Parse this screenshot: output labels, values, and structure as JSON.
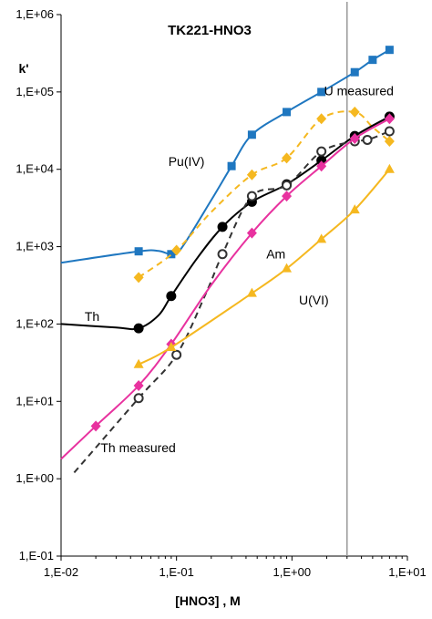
{
  "chart_data": {
    "type": "line",
    "title": "TK221-HNO3",
    "xlabel": "[HNO3] , M",
    "ylabel": "k'",
    "x_scale": "log",
    "y_scale": "log",
    "xlim": [
      0.01,
      10
    ],
    "ylim": [
      0.1,
      1000000
    ],
    "x_ticks": [
      "1,E-02",
      "1,E-01",
      "1,E+00",
      "1,E+01"
    ],
    "y_ticks": [
      "1,E-01",
      "1,E+00",
      "1,E+01",
      "1,E+02",
      "1,E+03",
      "1,E+04",
      "1,E+05",
      "1,E+06"
    ],
    "grid": false,
    "vertical_line_x": 3,
    "series": [
      {
        "name": "U measured",
        "color": "#1f77c0",
        "marker": "square",
        "dashed": false,
        "points": [
          [
            0.047,
            870
          ],
          [
            0.09,
            800
          ],
          [
            0.3,
            11000
          ],
          [
            0.45,
            28000
          ],
          [
            0.9,
            55000
          ],
          [
            1.8,
            100000
          ],
          [
            3.5,
            180000
          ],
          [
            5,
            260000
          ],
          [
            7,
            350000
          ]
        ],
        "curve": [
          [
            0.01,
            620
          ],
          [
            0.047,
            870
          ],
          [
            0.07,
            880
          ],
          [
            0.09,
            800
          ],
          [
            0.11,
            950
          ],
          [
            0.2,
            4000
          ],
          [
            0.3,
            11000
          ],
          [
            0.45,
            28000
          ],
          [
            0.9,
            55000
          ],
          [
            1.8,
            100000
          ],
          [
            3.5,
            180000
          ],
          [
            5,
            260000
          ],
          [
            7,
            350000
          ]
        ]
      },
      {
        "name": "Pu(IV)",
        "color": "#f5b820",
        "marker": "diamond",
        "dashed": true,
        "points": [
          [
            0.047,
            400
          ],
          [
            0.1,
            900
          ],
          [
            0.45,
            8500
          ],
          [
            0.9,
            14000
          ],
          [
            1.8,
            45000
          ],
          [
            3.5,
            55000
          ],
          [
            7,
            23000
          ]
        ],
        "curve": [
          [
            0.047,
            400
          ],
          [
            0.1,
            900
          ],
          [
            0.2,
            2800
          ],
          [
            0.45,
            8500
          ],
          [
            0.9,
            14000
          ],
          [
            1.8,
            45000
          ],
          [
            3.5,
            55000
          ],
          [
            5,
            35000
          ],
          [
            7,
            23000
          ]
        ]
      },
      {
        "name": "Th",
        "color": "#000000",
        "marker": "circle",
        "dashed": false,
        "points": [
          [
            0.047,
            88
          ],
          [
            0.09,
            230
          ],
          [
            0.25,
            1800
          ],
          [
            0.45,
            3800
          ],
          [
            0.9,
            6400
          ],
          [
            1.8,
            13000
          ],
          [
            3.5,
            27000
          ],
          [
            7,
            48000
          ]
        ],
        "curve": [
          [
            0.01,
            100
          ],
          [
            0.03,
            90
          ],
          [
            0.047,
            88
          ],
          [
            0.07,
            130
          ],
          [
            0.09,
            230
          ],
          [
            0.15,
            700
          ],
          [
            0.25,
            1800
          ],
          [
            0.45,
            3800
          ],
          [
            0.9,
            6400
          ],
          [
            1.8,
            13000
          ],
          [
            3.5,
            27000
          ],
          [
            7,
            48000
          ]
        ]
      },
      {
        "name": "Th measured",
        "color": "#333333",
        "marker": "open-circle",
        "dashed": true,
        "points": [
          [
            0.047,
            11
          ],
          [
            0.1,
            40
          ],
          [
            0.25,
            800
          ],
          [
            0.45,
            4500
          ],
          [
            0.9,
            6200
          ],
          [
            1.8,
            17000
          ],
          [
            3.5,
            23000
          ],
          [
            4.5,
            24000
          ],
          [
            7,
            31000
          ]
        ],
        "curve": [
          [
            0.013,
            1.2
          ],
          [
            0.047,
            11
          ],
          [
            0.1,
            40
          ],
          [
            0.18,
            250
          ],
          [
            0.25,
            800
          ],
          [
            0.45,
            4500
          ],
          [
            0.9,
            6200
          ],
          [
            1.8,
            17000
          ],
          [
            3.5,
            23000
          ],
          [
            4.5,
            24000
          ],
          [
            7,
            31000
          ]
        ]
      },
      {
        "name": "Am",
        "color": "#e8329f",
        "marker": "diamond",
        "dashed": false,
        "points": [
          [
            0.02,
            4.8
          ],
          [
            0.047,
            16
          ],
          [
            0.09,
            55
          ],
          [
            0.45,
            1500
          ],
          [
            0.9,
            4500
          ],
          [
            1.8,
            11000
          ],
          [
            3.5,
            25000
          ],
          [
            7,
            45000
          ]
        ],
        "curve": [
          [
            0.01,
            1.8
          ],
          [
            0.02,
            4.8
          ],
          [
            0.047,
            16
          ],
          [
            0.09,
            55
          ],
          [
            0.2,
            320
          ],
          [
            0.45,
            1500
          ],
          [
            0.9,
            4500
          ],
          [
            1.8,
            11000
          ],
          [
            3.5,
            25000
          ],
          [
            7,
            45000
          ]
        ]
      },
      {
        "name": "U(VI)",
        "color": "#f5b820",
        "marker": "triangle",
        "dashed": false,
        "points": [
          [
            0.047,
            30
          ],
          [
            0.09,
            50
          ],
          [
            0.45,
            250
          ],
          [
            0.9,
            520
          ],
          [
            1.8,
            1250
          ],
          [
            3.5,
            3000
          ],
          [
            7,
            10000
          ]
        ],
        "curve": [
          [
            0.047,
            30
          ],
          [
            0.09,
            50
          ],
          [
            0.45,
            250
          ],
          [
            0.9,
            520
          ],
          [
            1.8,
            1250
          ],
          [
            3.5,
            3000
          ],
          [
            7,
            10000
          ]
        ]
      }
    ],
    "annotations": [
      {
        "text": "U measured",
        "x": 1.9,
        "y": 90000
      },
      {
        "text": "Pu(IV)",
        "x": 0.085,
        "y": 11000
      },
      {
        "text": "Am",
        "x": 0.6,
        "y": 700
      },
      {
        "text": "U(VI)",
        "x": 1.15,
        "y": 180
      },
      {
        "text": "Th",
        "x": 0.016,
        "y": 110
      },
      {
        "text": "Th measured",
        "x": 0.022,
        "y": 2.2
      }
    ]
  }
}
